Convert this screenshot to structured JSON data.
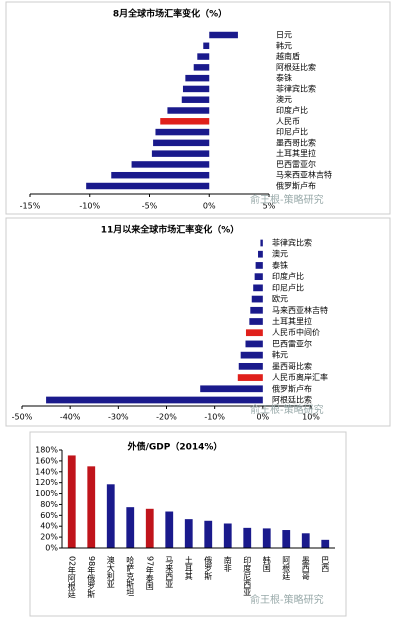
{
  "chart_data": [
    {
      "type": "hbar",
      "title": "8月全球市场汇率变化（%）",
      "categories": [
        "日元",
        "韩元",
        "越南盾",
        "阿根廷比索",
        "泰铢",
        "菲律宾比索",
        "澳元",
        "印度卢比",
        "人民币",
        "印尼卢比",
        "墨西哥比索",
        "土耳其里拉",
        "巴西雷亚尔",
        "马来西亚林吉特",
        "俄罗斯卢布"
      ],
      "values": [
        2.4,
        -0.5,
        -1,
        -1.3,
        -2,
        -2.2,
        -2.3,
        -3.5,
        -4.1,
        -4.5,
        -4.7,
        -4.8,
        -6.5,
        -8.2,
        -10.3
      ],
      "colors": [
        "#1a1a8c",
        "#1a1a8c",
        "#1a1a8c",
        "#1a1a8c",
        "#1a1a8c",
        "#1a1a8c",
        "#1a1a8c",
        "#1a1a8c",
        "#e0201b",
        "#1a1a8c",
        "#1a1a8c",
        "#1a1a8c",
        "#1a1a8c",
        "#1a1a8c",
        "#1a1a8c"
      ],
      "xlim": [
        -15,
        5
      ],
      "xticks": [
        {
          "value": -15,
          "label": "-15%"
        },
        {
          "value": -10,
          "label": "-10%"
        },
        {
          "value": -5,
          "label": "-5%"
        },
        {
          "value": 0,
          "label": "0%"
        },
        {
          "value": 5,
          "label": "5%"
        }
      ],
      "watermark": "俞王根-策略研究"
    },
    {
      "type": "hbar",
      "title": "11月以来全球市场汇率变化（%）",
      "categories": [
        "菲律宾比索",
        "澳元",
        "泰铢",
        "印度卢比",
        "印尼卢比",
        "欧元",
        "马来西亚林吉特",
        "土耳其里拉",
        "人民币中间价",
        "巴西雷亚尔",
        "韩元",
        "墨西哥比索",
        "人民币离岸汇率",
        "俄罗斯卢布",
        "阿根廷比索"
      ],
      "values": [
        -0.5,
        -1,
        -1.5,
        -1.7,
        -2,
        -2.3,
        -2.6,
        -2.8,
        -3.5,
        -3.6,
        -4.6,
        -5,
        -5.2,
        -13,
        -45
      ],
      "colors": [
        "#1a1a8c",
        "#1a1a8c",
        "#1a1a8c",
        "#1a1a8c",
        "#1a1a8c",
        "#1a1a8c",
        "#1a1a8c",
        "#1a1a8c",
        "#e0201b",
        "#1a1a8c",
        "#1a1a8c",
        "#1a1a8c",
        "#e0201b",
        "#1a1a8c",
        "#1a1a8c"
      ],
      "xlim": [
        -50,
        10
      ],
      "xticks": [
        {
          "value": -50,
          "label": "-50%"
        },
        {
          "value": -40,
          "label": "-40%"
        },
        {
          "value": -30,
          "label": "-30%"
        },
        {
          "value": -20,
          "label": "-20%"
        },
        {
          "value": -10,
          "label": "-10%"
        },
        {
          "value": 0,
          "label": "0%"
        },
        {
          "value": 10,
          "label": "10%"
        }
      ],
      "watermark": "俞王根-策略研究"
    },
    {
      "type": "bar",
      "title": "外债/GDP（2014%）",
      "categories": [
        "02年阿根廷",
        "98年俄罗斯",
        "澳大利亚",
        "哈萨克斯坦",
        "97年泰国",
        "马来西亚",
        "土耳其",
        "俄罗斯",
        "南非",
        "印度尼西亚",
        "韩国",
        "阿根廷",
        "墨西哥",
        "巴西"
      ],
      "values": [
        170,
        150,
        117,
        75,
        72,
        67,
        53,
        50,
        45,
        37,
        36,
        33,
        27,
        15
      ],
      "colors": [
        "#c0141b",
        "#c0141b",
        "#1a1a8c",
        "#1a1a8c",
        "#c0141b",
        "#1a1a8c",
        "#1a1a8c",
        "#1a1a8c",
        "#1a1a8c",
        "#1a1a8c",
        "#1a1a8c",
        "#1a1a8c",
        "#1a1a8c",
        "#1a1a8c"
      ],
      "ylim": [
        0,
        180
      ],
      "yticks": [
        {
          "value": 0,
          "label": "0%"
        },
        {
          "value": 20,
          "label": "20%"
        },
        {
          "value": 40,
          "label": "40%"
        },
        {
          "value": 60,
          "label": "60%"
        },
        {
          "value": 80,
          "label": "80%"
        },
        {
          "value": 100,
          "label": "100%"
        },
        {
          "value": 120,
          "label": "120%"
        },
        {
          "value": 140,
          "label": "140%"
        },
        {
          "value": 160,
          "label": "160%"
        },
        {
          "value": 180,
          "label": "180%"
        }
      ],
      "watermark": "俞王根-策略研究"
    }
  ]
}
